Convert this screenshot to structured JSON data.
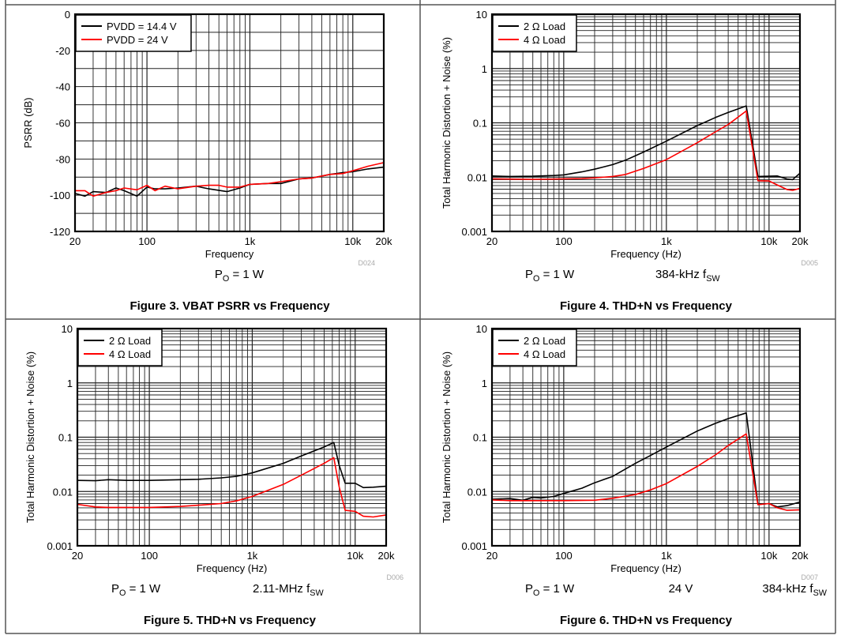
{
  "chart_data": [
    {
      "type": "line",
      "figure_caption": "Figure 3. VBAT PSRR vs Frequency",
      "xlabel": "Frequency",
      "ylabel": "PSRR (dB)",
      "code": "D024",
      "conditions": [
        "P_O = 1 W"
      ],
      "xscale": "log",
      "yscale": "linear",
      "xlim": [
        20,
        20000
      ],
      "ylim": [
        -120,
        0
      ],
      "xticks": [
        {
          "v": 20,
          "label": "20"
        },
        {
          "v": 100,
          "label": "100"
        },
        {
          "v": 1000,
          "label": "1k"
        },
        {
          "v": 10000,
          "label": "10k"
        },
        {
          "v": 20000,
          "label": "20k"
        }
      ],
      "yticks": [
        {
          "v": 0,
          "label": "0"
        },
        {
          "v": -20,
          "label": "-20"
        },
        {
          "v": -40,
          "label": "-40"
        },
        {
          "v": -60,
          "label": "-60"
        },
        {
          "v": -80,
          "label": "-80"
        },
        {
          "v": -100,
          "label": "-100"
        },
        {
          "v": -120,
          "label": "-120"
        }
      ],
      "grid": true,
      "legend": "top-left",
      "series": [
        {
          "name": "PVDD = 14.4 V",
          "color": "#000000",
          "x": [
            20,
            25,
            30,
            40,
            50,
            60,
            80,
            100,
            120,
            150,
            200,
            300,
            400,
            600,
            800,
            1000,
            1500,
            2000,
            3000,
            4000,
            6000,
            8000,
            10000,
            14000,
            20000
          ],
          "y": [
            -99,
            -100.5,
            -98,
            -98.5,
            -96,
            -97.5,
            -100.5,
            -95.5,
            -96.5,
            -96.5,
            -96,
            -95,
            -96.5,
            -98,
            -96,
            -94,
            -93.5,
            -93.5,
            -91,
            -90.5,
            -88.5,
            -87.5,
            -87,
            -85.5,
            -84.5
          ]
        },
        {
          "name": "PVDD = 24 V",
          "color": "#ff0000",
          "x": [
            20,
            25,
            30,
            40,
            50,
            60,
            80,
            100,
            120,
            150,
            200,
            300,
            400,
            500,
            600,
            800,
            1000,
            1500,
            2000,
            3000,
            4000,
            6000,
            8000,
            10000,
            14000,
            20000
          ],
          "y": [
            -97.5,
            -97.5,
            -100.5,
            -98.5,
            -97.5,
            -96,
            -97,
            -94.5,
            -97.5,
            -95,
            -96.5,
            -95,
            -94.5,
            -94.5,
            -95.5,
            -95.5,
            -94,
            -93.5,
            -92.5,
            -91,
            -90.5,
            -88.5,
            -88,
            -86.5,
            -84,
            -82
          ]
        }
      ]
    },
    {
      "type": "line",
      "figure_caption": "Figure 4. THD+N vs Frequency",
      "xlabel": "Frequency (Hz)",
      "ylabel": "Total Harmonic Distortion + Noise (%)",
      "code": "D005",
      "conditions": [
        "P_O = 1 W",
        "384-kHz f_SW"
      ],
      "xscale": "log",
      "yscale": "log",
      "xlim": [
        20,
        20000
      ],
      "ylim": [
        0.001,
        10
      ],
      "xticks": [
        {
          "v": 20,
          "label": "20"
        },
        {
          "v": 100,
          "label": "100"
        },
        {
          "v": 1000,
          "label": "1k"
        },
        {
          "v": 10000,
          "label": "10k"
        },
        {
          "v": 20000,
          "label": "20k"
        }
      ],
      "yticks": [
        {
          "v": 10,
          "label": "10"
        },
        {
          "v": 1,
          "label": "1"
        },
        {
          "v": 0.1,
          "label": "0.1"
        },
        {
          "v": 0.01,
          "label": "0.01"
        },
        {
          "v": 0.001,
          "label": "0.001"
        }
      ],
      "grid": true,
      "legend": "top-left",
      "series": [
        {
          "name": "2 Ω Load",
          "color": "#000000",
          "x": [
            20,
            30,
            50,
            80,
            100,
            150,
            200,
            300,
            400,
            600,
            1000,
            2000,
            3000,
            4000,
            6000,
            7800,
            10000,
            12000,
            15000,
            17000,
            20000
          ],
          "y": [
            0.0105,
            0.0103,
            0.0104,
            0.0107,
            0.011,
            0.0125,
            0.014,
            0.017,
            0.0205,
            0.029,
            0.046,
            0.089,
            0.125,
            0.155,
            0.205,
            0.0103,
            0.0104,
            0.0105,
            0.0092,
            0.009,
            0.0118
          ]
        },
        {
          "name": "4 Ω Load",
          "color": "#ff0000",
          "x": [
            20,
            30,
            50,
            80,
            100,
            150,
            200,
            300,
            400,
            600,
            1000,
            2000,
            3000,
            4000,
            6000,
            7800,
            10000,
            12000,
            15000,
            17000,
            20000
          ],
          "y": [
            0.0093,
            0.0092,
            0.0091,
            0.0092,
            0.0093,
            0.0094,
            0.0097,
            0.0103,
            0.0112,
            0.0145,
            0.021,
            0.043,
            0.068,
            0.093,
            0.165,
            0.0086,
            0.0085,
            0.0072,
            0.0059,
            0.0057,
            0.0062
          ]
        }
      ]
    },
    {
      "type": "line",
      "figure_caption": "Figure 5. THD+N vs Frequency",
      "xlabel": "Frequency (Hz)",
      "ylabel": "Total Harmonic Distortion + Noise (%)",
      "code": "D006",
      "conditions": [
        "P_O = 1 W",
        "2.11-MHz f_SW"
      ],
      "xscale": "log",
      "yscale": "log",
      "xlim": [
        20,
        20000
      ],
      "ylim": [
        0.001,
        10
      ],
      "xticks": [
        {
          "v": 20,
          "label": "20"
        },
        {
          "v": 100,
          "label": "100"
        },
        {
          "v": 1000,
          "label": "1k"
        },
        {
          "v": 10000,
          "label": "10k"
        },
        {
          "v": 20000,
          "label": "20k"
        }
      ],
      "yticks": [
        {
          "v": 10,
          "label": "10"
        },
        {
          "v": 1,
          "label": "1"
        },
        {
          "v": 0.1,
          "label": "0.1"
        },
        {
          "v": 0.01,
          "label": "0.01"
        },
        {
          "v": 0.001,
          "label": "0.001"
        }
      ],
      "grid": true,
      "legend": "top-left",
      "series": [
        {
          "name": "2 Ω Load",
          "color": "#000000",
          "x": [
            20,
            30,
            40,
            60,
            100,
            200,
            300,
            500,
            700,
            1000,
            2000,
            3000,
            5000,
            6200,
            7000,
            8000,
            10000,
            12000,
            15000,
            20000
          ],
          "y": [
            0.016,
            0.0158,
            0.0165,
            0.016,
            0.016,
            0.0165,
            0.0168,
            0.0178,
            0.019,
            0.022,
            0.033,
            0.045,
            0.066,
            0.08,
            0.03,
            0.0142,
            0.0142,
            0.0118,
            0.012,
            0.0125
          ]
        },
        {
          "name": "4 Ω Load",
          "color": "#ff0000",
          "x": [
            20,
            30,
            40,
            60,
            100,
            200,
            300,
            500,
            700,
            1000,
            2000,
            3000,
            5000,
            6200,
            7000,
            8000,
            10000,
            12000,
            15000,
            20000
          ],
          "y": [
            0.0058,
            0.0052,
            0.0051,
            0.0051,
            0.0051,
            0.0053,
            0.0056,
            0.006,
            0.0067,
            0.0081,
            0.0135,
            0.02,
            0.033,
            0.042,
            0.012,
            0.0045,
            0.0043,
            0.0035,
            0.0034,
            0.0037
          ]
        }
      ]
    },
    {
      "type": "line",
      "figure_caption": "Figure 6. THD+N vs Frequency",
      "xlabel": "Frequency (Hz)",
      "ylabel": "Total Harmonic Distortion + Noise (%)",
      "code": "D007",
      "conditions": [
        "P_O = 1 W",
        "24 V",
        "384-kHz f_SW"
      ],
      "xscale": "log",
      "yscale": "log",
      "xlim": [
        20,
        20000
      ],
      "ylim": [
        0.001,
        10
      ],
      "xticks": [
        {
          "v": 20,
          "label": "20"
        },
        {
          "v": 100,
          "label": "100"
        },
        {
          "v": 1000,
          "label": "1k"
        },
        {
          "v": 10000,
          "label": "10k"
        },
        {
          "v": 20000,
          "label": "20k"
        }
      ],
      "yticks": [
        {
          "v": 10,
          "label": "10"
        },
        {
          "v": 1,
          "label": "1"
        },
        {
          "v": 0.1,
          "label": "0.1"
        },
        {
          "v": 0.01,
          "label": "0.01"
        },
        {
          "v": 0.001,
          "label": "0.001"
        }
      ],
      "grid": true,
      "legend": "top-left",
      "series": [
        {
          "name": "2 Ω Load",
          "color": "#000000",
          "x": [
            20,
            30,
            40,
            50,
            60,
            80,
            100,
            150,
            200,
            300,
            500,
            700,
            1000,
            2000,
            3000,
            4000,
            6000,
            7800,
            10000,
            12000,
            15000,
            20000
          ],
          "y": [
            0.0072,
            0.0074,
            0.0069,
            0.0078,
            0.0076,
            0.0081,
            0.0092,
            0.0115,
            0.0145,
            0.019,
            0.033,
            0.046,
            0.066,
            0.13,
            0.18,
            0.22,
            0.28,
            0.0058,
            0.006,
            0.0052,
            0.0055,
            0.0064
          ]
        },
        {
          "name": "4 Ω Load",
          "color": "#ff0000",
          "x": [
            20,
            30,
            50,
            100,
            200,
            300,
            500,
            700,
            1000,
            2000,
            3000,
            4000,
            6000,
            7800,
            10000,
            12000,
            15000,
            20000
          ],
          "y": [
            0.007,
            0.0068,
            0.0068,
            0.0068,
            0.0069,
            0.0075,
            0.0088,
            0.0107,
            0.014,
            0.029,
            0.047,
            0.07,
            0.115,
            0.0057,
            0.006,
            0.005,
            0.0045,
            0.0046
          ]
        }
      ]
    }
  ]
}
